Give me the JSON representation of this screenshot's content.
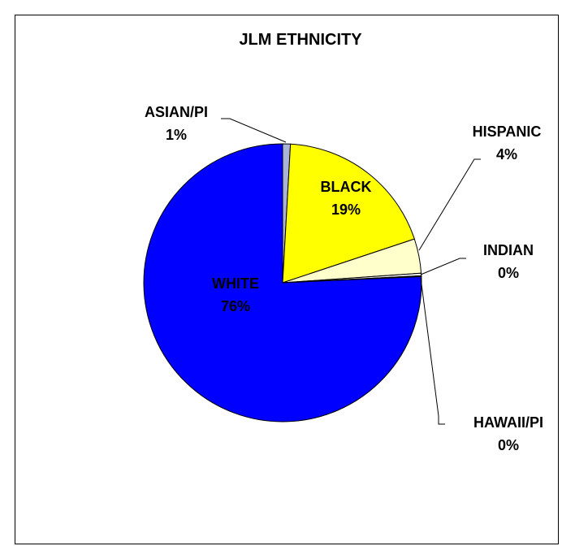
{
  "chart_data": {
    "type": "pie",
    "title": "JLM ETHNICITY",
    "slices": [
      {
        "name": "ASIAN/PI",
        "pct_label": "1%",
        "value": 0.9,
        "color": "#a9b3d6"
      },
      {
        "name": "BLACK",
        "pct_label": "19%",
        "value": 19.0,
        "color": "#ffff00"
      },
      {
        "name": "HISPANIC",
        "pct_label": "4%",
        "value": 4.0,
        "color": "#ffffcc"
      },
      {
        "name": "INDIAN",
        "pct_label": "0%",
        "value": 0.3,
        "color": "#eeeeee"
      },
      {
        "name": "HAWAII/PI",
        "pct_label": "0%",
        "value": 0.1,
        "color": "#000080"
      },
      {
        "name": "WHITE",
        "pct_label": "76%",
        "value": 75.7,
        "color": "#0000ff"
      }
    ]
  }
}
